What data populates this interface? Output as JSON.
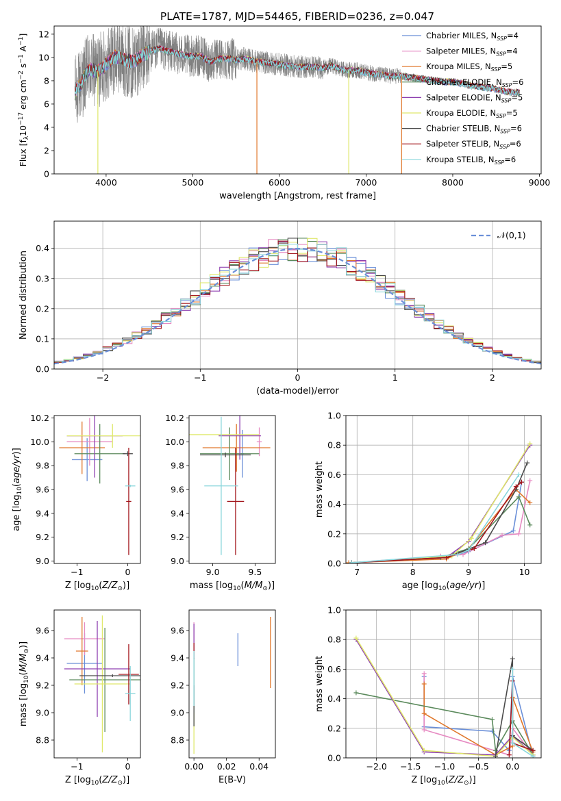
{
  "figure_title": "PLATE=1787, MJD=54465, FIBERID=0236, z=0.047",
  "models": [
    {
      "name": "Chabrier MILES",
      "nssp": "4",
      "color": "#6a8fd8"
    },
    {
      "name": "Salpeter MILES",
      "nssp": "4",
      "color": "#e68ac2"
    },
    {
      "name": "Kroupa MILES",
      "nssp": "5",
      "color": "#e0782c"
    },
    {
      "name": "Chabrier ELODIE",
      "nssp": "6",
      "color": "#5b8a5c"
    },
    {
      "name": "Salpeter ELODIE",
      "nssp": "5",
      "color": "#8e3fb0"
    },
    {
      "name": "Kroupa ELODIE",
      "nssp": "5",
      "color": "#dfe86a"
    },
    {
      "name": "Chabrier STELIB",
      "nssp": "6",
      "color": "#4a4a4a"
    },
    {
      "name": "Salpeter STELIB",
      "nssp": "6",
      "color": "#a3161c"
    },
    {
      "name": "Kroupa STELIB",
      "nssp": "6",
      "color": "#8ad6dc"
    }
  ],
  "chart_data": [
    {
      "id": "spectrum",
      "type": "line",
      "xlabel": "wavelength [Angstrom, rest frame]",
      "ylabel": "Flux [f_λ 10^-17 erg cm^-2 s^-1 A^-1]",
      "xlim": [
        3400,
        9020
      ],
      "ylim": [
        0,
        12.7
      ],
      "xticks": [
        4000,
        5000,
        6000,
        7000,
        8000,
        9000
      ],
      "yticks": [
        0,
        2,
        4,
        6,
        8,
        10,
        12
      ],
      "grid": false,
      "legend": "top-right",
      "observed": {
        "color": "#808080",
        "x": [
          3640,
          3700,
          3800,
          3900,
          4000,
          4100,
          4200,
          4300,
          4400,
          4500,
          4600,
          4700,
          4800,
          4900,
          5000,
          5100,
          5200,
          5300,
          5400,
          5500,
          5600,
          5700,
          5800,
          5900,
          6000,
          6100,
          6200,
          6300,
          6400,
          6500,
          6600,
          6700,
          6800,
          6900,
          7000,
          7100,
          7200,
          7300,
          7400,
          7500,
          7600,
          7700,
          7800,
          7900,
          8000,
          8100,
          8200,
          8300,
          8400,
          8500,
          8600,
          8700,
          8770
        ],
        "y": [
          7.0,
          7.6,
          9.0,
          8.8,
          9.4,
          10.1,
          9.9,
          9.6,
          10.1,
          10.5,
          10.8,
          10.6,
          10.4,
          10.2,
          10.1,
          10.1,
          9.6,
          9.9,
          9.9,
          9.8,
          9.9,
          9.7,
          9.6,
          9.5,
          9.4,
          9.3,
          9.2,
          9.2,
          9.2,
          9.1,
          9.3,
          9.0,
          8.9,
          8.9,
          8.7,
          8.6,
          8.5,
          8.4,
          8.4,
          8.3,
          8.2,
          8.1,
          8.0,
          7.9,
          7.9,
          7.8,
          7.6,
          7.5,
          7.4,
          7.3,
          7.1,
          7.0,
          7.0
        ]
      },
      "model_curve": {
        "x": [
          3640,
          3700,
          3800,
          3900,
          4000,
          4100,
          4200,
          4300,
          4400,
          4500,
          4600,
          4700,
          4800,
          4900,
          5000,
          5100,
          5200,
          5300,
          5400,
          5500,
          5600,
          5700,
          5800,
          5900,
          6000,
          6100,
          6200,
          6300,
          6400,
          6500,
          6600,
          6700,
          6800,
          6900,
          7000,
          7100,
          7200,
          7300,
          7400,
          7500,
          7600,
          7700,
          7800,
          7900,
          8000,
          8100,
          8200,
          8300,
          8400,
          8500,
          8600,
          8700,
          8770
        ],
        "y": [
          7.0,
          7.6,
          9.0,
          8.8,
          9.4,
          10.1,
          9.9,
          9.6,
          10.1,
          10.5,
          10.8,
          10.6,
          10.4,
          10.2,
          10.1,
          10.1,
          9.6,
          9.9,
          9.9,
          9.8,
          9.9,
          9.7,
          9.6,
          9.5,
          9.4,
          9.3,
          9.2,
          9.2,
          9.2,
          9.1,
          9.3,
          9.0,
          8.9,
          8.9,
          8.7,
          8.6,
          8.5,
          8.4,
          8.4,
          8.3,
          8.2,
          8.1,
          8.0,
          7.9,
          7.9,
          7.8,
          7.6,
          7.5,
          7.4,
          7.3,
          7.1,
          7.0,
          7.0
        ]
      }
    },
    {
      "id": "residuals",
      "type": "step",
      "xlabel": "(data-model)/error",
      "ylabel": "Normed distribution",
      "xlim": [
        -2.5,
        2.5
      ],
      "ylim": [
        0,
        0.49
      ],
      "xticks": [
        -2,
        -1,
        0,
        1,
        2
      ],
      "yticks": [
        0.0,
        0.1,
        0.2,
        0.3,
        0.4
      ],
      "grid": true,
      "legend": "top-right",
      "reference": {
        "label": "𝒩(0,1)",
        "mean": 0,
        "sigma": 1,
        "color": "#6a8fd8"
      },
      "bins": [
        -2.5,
        -2.4,
        -2.3,
        -2.2,
        -2.1,
        -2.0,
        -1.9,
        -1.8,
        -1.7,
        -1.6,
        -1.5,
        -1.4,
        -1.3,
        -1.2,
        -1.1,
        -1.0,
        -0.9,
        -0.8,
        -0.7,
        -0.6,
        -0.5,
        -0.4,
        -0.3,
        -0.2,
        -0.1,
        0.0,
        0.1,
        0.2,
        0.3,
        0.4,
        0.5,
        0.6,
        0.7,
        0.8,
        0.9,
        1.0,
        1.1,
        1.2,
        1.3,
        1.4,
        1.5,
        1.6,
        1.7,
        1.8,
        1.9,
        2.0,
        2.1,
        2.2,
        2.3,
        2.4,
        2.5
      ]
    },
    {
      "id": "age-vs-z",
      "type": "errorbar",
      "xlabel": "Z [log10(Z/Z⊙)]",
      "ylabel": "age [log10(age/yr)]",
      "xlim": [
        -1.45,
        0.25
      ],
      "ylim": [
        8.98,
        10.22
      ],
      "xticks": [
        -1,
        0
      ],
      "yticks": [
        9.0,
        9.2,
        9.4,
        9.6,
        9.8,
        10.0,
        10.2
      ],
      "points": [
        {
          "x": -0.8,
          "xerr": 0.3,
          "y": 9.85,
          "yerr": 0.18
        },
        {
          "x": -0.75,
          "xerr": 0.45,
          "y": 10.0,
          "yerr": 0.2
        },
        {
          "x": -0.9,
          "xerr": 0.45,
          "y": 9.95,
          "yerr": 0.22
        },
        {
          "x": -0.55,
          "xerr": 0.5,
          "y": 9.9,
          "yerr": 0.25
        },
        {
          "x": -0.65,
          "xerr": 0.55,
          "y": 10.05,
          "yerr": 0.35
        },
        {
          "x": -0.3,
          "xerr": 0.9,
          "y": 10.05,
          "yerr": 0.1
        },
        {
          "x": 0.0,
          "xerr": 0.1,
          "y": 9.9,
          "yerr": 0.02
        },
        {
          "x": 0.02,
          "xerr": 0.05,
          "y": 9.5,
          "yerr": 0.45
        },
        {
          "x": 0.05,
          "xerr": 0.1,
          "y": 9.63,
          "yerr": 0.01
        }
      ]
    },
    {
      "id": "age-vs-mass",
      "type": "errorbar",
      "xlabel": "mass [log10(M/M⊙)]",
      "ylabel": "",
      "xlim": [
        8.72,
        9.74
      ],
      "ylim": [
        8.98,
        10.22
      ],
      "xticks": [
        9.0,
        9.5
      ],
      "yticks": [
        9.0,
        9.2,
        9.4,
        9.6,
        9.8,
        10.0,
        10.2
      ],
      "points": [
        {
          "x": 9.35,
          "xerr": 0.02,
          "y": 9.9,
          "yerr": 0.2
        },
        {
          "x": 9.55,
          "xerr": 0.03,
          "y": 10.0,
          "yerr": 0.12
        },
        {
          "x": 9.28,
          "xerr": 0.4,
          "y": 9.95,
          "yerr": 0.2
        },
        {
          "x": 9.2,
          "xerr": 0.35,
          "y": 9.9,
          "yerr": 0.22
        },
        {
          "x": 9.32,
          "xerr": 0.25,
          "y": 10.05,
          "yerr": 0.2
        },
        {
          "x": 9.1,
          "xerr": 0.45,
          "y": 10.06,
          "yerr": 0.01
        },
        {
          "x": 9.15,
          "xerr": 0.3,
          "y": 9.89,
          "yerr": 0.02
        },
        {
          "x": 9.27,
          "xerr": 0.1,
          "y": 9.5,
          "yerr": 0.45
        },
        {
          "x": 9.1,
          "xerr": 0.2,
          "y": 9.63,
          "yerr": 0.58
        }
      ]
    },
    {
      "id": "mass-weight-vs-age",
      "type": "line",
      "xlabel": "age [log10(age/yr)]",
      "ylabel": "mass weight",
      "xlim": [
        6.8,
        10.3
      ],
      "ylim": [
        0,
        1.0
      ],
      "xticks": [
        7,
        8,
        9,
        10
      ],
      "yticks": [
        0.0,
        0.2,
        0.4,
        0.6,
        0.8,
        1.0
      ],
      "grid": true,
      "series": [
        {
          "x": [
            6.9,
            8.6,
            9.0,
            9.8,
            9.95
          ],
          "y": [
            0.005,
            0.04,
            0.08,
            0.22,
            0.55
          ]
        },
        {
          "x": [
            6.9,
            8.5,
            8.9,
            9.6,
            9.9,
            10.1
          ],
          "y": [
            0.005,
            0.05,
            0.06,
            0.19,
            0.2,
            0.56
          ]
        },
        {
          "x": [
            6.85,
            8.6,
            9.0,
            9.85,
            10.1
          ],
          "y": [
            0.005,
            0.03,
            0.1,
            0.5,
            0.41
          ]
        },
        {
          "x": [
            6.9,
            8.5,
            9.0,
            9.9,
            10.1
          ],
          "y": [
            0.005,
            0.04,
            0.1,
            0.45,
            0.26
          ]
        },
        {
          "x": [
            6.9,
            8.6,
            9.0,
            10.1
          ],
          "y": [
            0.005,
            0.04,
            0.15,
            0.8
          ]
        },
        {
          "x": [
            6.9,
            8.7,
            9.05,
            10.1
          ],
          "y": [
            0.005,
            0.05,
            0.17,
            0.81
          ]
        },
        {
          "x": [
            6.9,
            8.6,
            9.3,
            9.85,
            10.05
          ],
          "y": [
            0.005,
            0.04,
            0.14,
            0.5,
            0.68
          ]
        },
        {
          "x": [
            6.9,
            8.6,
            9.1,
            9.85,
            9.95
          ],
          "y": [
            0.005,
            0.04,
            0.1,
            0.52,
            0.55
          ]
        },
        {
          "x": [
            6.9,
            8.8,
            9.0,
            9.9
          ],
          "y": [
            0.005,
            0.06,
            0.09,
            0.6
          ]
        }
      ]
    },
    {
      "id": "mass-vs-z",
      "type": "errorbar",
      "xlabel": "Z [log10(Z/Z⊙)]",
      "ylabel": "mass [log10(M/M⊙)]",
      "xlim": [
        -1.45,
        0.25
      ],
      "ylim": [
        8.67,
        9.75
      ],
      "xticks": [
        -1,
        0
      ],
      "yticks": [
        8.8,
        9.0,
        9.2,
        9.4,
        9.6
      ],
      "points": [
        {
          "x": -0.85,
          "xerr": 0.35,
          "y": 9.36,
          "yerr": 0.22
        },
        {
          "x": -0.85,
          "xerr": 0.4,
          "y": 9.54,
          "yerr": 0.12
        },
        {
          "x": -0.9,
          "xerr": 0.12,
          "y": 9.45,
          "yerr": 0.25
        },
        {
          "x": -0.45,
          "xerr": 0.7,
          "y": 9.24,
          "yerr": 0.38
        },
        {
          "x": -0.6,
          "xerr": 0.65,
          "y": 9.32,
          "yerr": 0.35
        },
        {
          "x": -0.5,
          "xerr": 0.55,
          "y": 9.21,
          "yerr": 0.5
        },
        {
          "x": -0.3,
          "xerr": 0.65,
          "y": 9.27,
          "yerr": 0.01
        },
        {
          "x": 0.02,
          "xerr": 0.2,
          "y": 9.28,
          "yerr": 0.22
        },
        {
          "x": 0.05,
          "xerr": 0.1,
          "y": 9.14,
          "yerr": 0.2
        }
      ]
    },
    {
      "id": "mass-vs-ebv",
      "type": "errorbar",
      "xlabel": "E(B-V)",
      "ylabel": "",
      "xlim": [
        -0.003,
        0.05
      ],
      "ylim": [
        8.67,
        9.75
      ],
      "xticks": [
        0.0,
        0.02,
        0.04
      ],
      "yticks": [
        8.8,
        9.0,
        9.2,
        9.4,
        9.6
      ],
      "points": [
        {
          "x": 0.027,
          "xerr": 0.0,
          "y": 9.46,
          "yerr": 0.12
        },
        {
          "x": 0.0,
          "xerr": 0.0,
          "y": 9.56,
          "yerr": 0.1
        },
        {
          "x": 0.047,
          "xerr": 0.0,
          "y": 9.44,
          "yerr": 0.26
        },
        {
          "x": 0.0,
          "xerr": 0.0,
          "y": 9.15,
          "yerr": 0.25
        },
        {
          "x": 0.0,
          "xerr": 0.0,
          "y": 9.55,
          "yerr": 0.1
        },
        {
          "x": 0.0,
          "xerr": 0.0,
          "y": 8.85,
          "yerr": 0.15
        },
        {
          "x": 0.0,
          "xerr": 0.0,
          "y": 9.05,
          "yerr": 0.15
        },
        {
          "x": 0.0,
          "xerr": 0.0,
          "y": 9.45,
          "yerr": 0.06
        },
        {
          "x": 0.0,
          "xerr": 0.0,
          "y": 9.25,
          "yerr": 0.2
        }
      ]
    },
    {
      "id": "mass-weight-vs-z",
      "type": "line",
      "xlabel": "Z [log10(Z/Z⊙)]",
      "ylabel": "mass weight",
      "xlim": [
        -2.45,
        0.42
      ],
      "ylim": [
        0,
        1.0
      ],
      "xticks": [
        -2.0,
        -1.5,
        -1.0,
        -0.5,
        0.0
      ],
      "yticks": [
        0.0,
        0.2,
        0.4,
        0.6,
        0.8,
        1.0
      ],
      "grid": true,
      "series": [
        {
          "x": [
            -1.3,
            -1.3,
            -0.3,
            -0.05,
            0.0,
            0.3
          ],
          "y": [
            0.55,
            0.21,
            0.18,
            0.05,
            0.55,
            0.01
          ]
        },
        {
          "x": [
            -1.3,
            -1.3,
            -0.05,
            0.0,
            0.3
          ],
          "y": [
            0.57,
            0.19,
            0.02,
            0.2,
            0.02
          ]
        },
        {
          "x": [
            -1.3,
            -1.3,
            -0.25,
            0.0,
            0.0,
            0.3
          ],
          "y": [
            0.5,
            0.3,
            0.02,
            0.08,
            0.41,
            0.04
          ]
        },
        {
          "x": [
            -2.3,
            -0.3,
            -0.25,
            0.0,
            0.3
          ],
          "y": [
            0.44,
            0.26,
            0.05,
            0.25,
            0.02
          ]
        },
        {
          "x": [
            -2.3,
            -1.3,
            -0.25,
            0.0,
            0.3
          ],
          "y": [
            0.8,
            0.04,
            0.02,
            0.15,
            0.02
          ]
        },
        {
          "x": [
            -2.3,
            -1.3,
            -0.25,
            0.0,
            0.3
          ],
          "y": [
            0.81,
            0.05,
            0.01,
            0.14,
            0.02
          ]
        },
        {
          "x": [
            -0.25,
            0.0,
            0.0,
            0.3
          ],
          "y": [
            0.01,
            0.67,
            0.15,
            0.05
          ]
        },
        {
          "x": [
            -0.05,
            0.0,
            0.0,
            0.3
          ],
          "y": [
            0.02,
            0.52,
            0.1,
            0.05
          ]
        },
        {
          "x": [
            0.0,
            0.0,
            0.3
          ],
          "y": [
            0.6,
            0.1,
            0.01
          ]
        }
      ]
    }
  ]
}
